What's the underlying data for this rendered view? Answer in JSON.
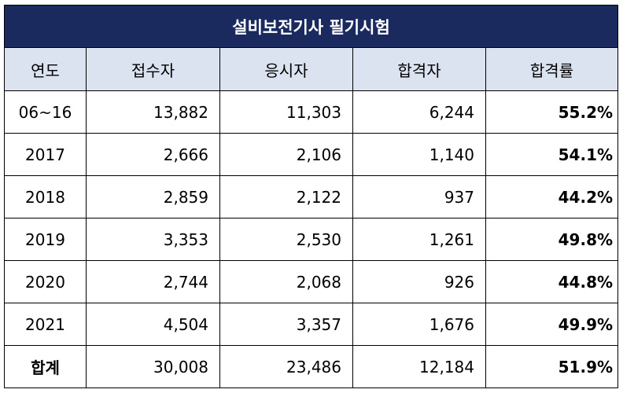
{
  "table": {
    "title": "설비보전기사 필기시험",
    "headers": [
      "연도",
      "접수자",
      "응시자",
      "합격자",
      "합격률"
    ],
    "rows": [
      {
        "year": "06~16",
        "applicants": "13,882",
        "examinees": "11,303",
        "passers": "6,244",
        "rate": "55.2%"
      },
      {
        "year": "2017",
        "applicants": "2,666",
        "examinees": "2,106",
        "passers": "1,140",
        "rate": "54.1%"
      },
      {
        "year": "2018",
        "applicants": "2,859",
        "examinees": "2,122",
        "passers": "937",
        "rate": "44.2%"
      },
      {
        "year": "2019",
        "applicants": "3,353",
        "examinees": "2,530",
        "passers": "1,261",
        "rate": "49.8%"
      },
      {
        "year": "2020",
        "applicants": "2,744",
        "examinees": "2,068",
        "passers": "926",
        "rate": "44.8%"
      },
      {
        "year": "2021",
        "applicants": "4,504",
        "examinees": "3,357",
        "passers": "1,676",
        "rate": "49.9%"
      }
    ],
    "total": {
      "year": "합계",
      "applicants": "30,008",
      "examinees": "23,486",
      "passers": "12,184",
      "rate": "51.9%"
    }
  },
  "colors": {
    "title_bg": "#1b2a5e",
    "header_bg": "#dbe3f1",
    "border": "#000000"
  }
}
